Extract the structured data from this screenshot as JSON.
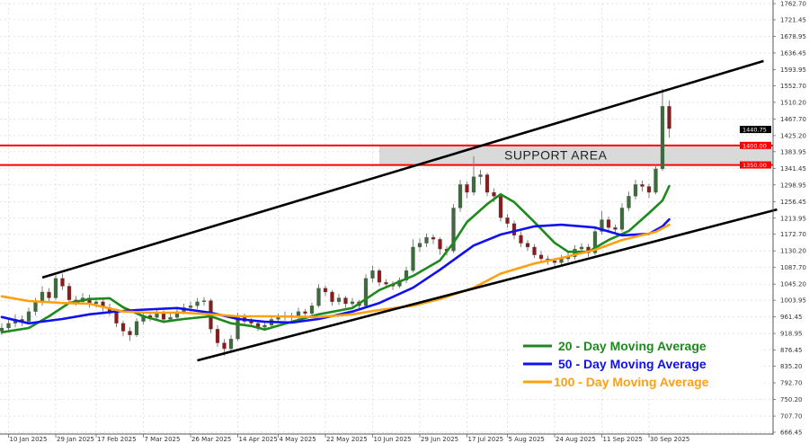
{
  "chart_data": {
    "type": "candlestick",
    "title": "",
    "xlabel": "",
    "ylabel": "",
    "ylim": [
      666.45,
      1762.7
    ],
    "grid": true,
    "y_ticks": [
      "1762.70",
      "1721.45",
      "1678.95",
      "1636.45",
      "1593.95",
      "1552.70",
      "1510.20",
      "1467.70",
      "1425.20",
      "1383.95",
      "1341.45",
      "1298.95",
      "1256.45",
      "1213.95",
      "1172.70",
      "1130.20",
      "1087.70",
      "1045.20",
      "1003.95",
      "961.45",
      "918.95",
      "876.45",
      "835.20",
      "792.70",
      "750.20",
      "707.70",
      "666.45"
    ],
    "x_ticks": [
      {
        "label": "10 Jan 2025",
        "index": 1
      },
      {
        "label": "29 Jan 2025",
        "index": 8
      },
      {
        "label": "17 Feb 2025",
        "index": 14
      },
      {
        "label": "7 Mar 2025",
        "index": 21
      },
      {
        "label": "26 Mar 2025",
        "index": 28
      },
      {
        "label": "14 Apr 2025",
        "index": 35
      },
      {
        "label": "4 May 2025",
        "index": 41
      },
      {
        "label": "22 May 2025",
        "index": 48
      },
      {
        "label": "10 Jun 2025",
        "index": 55
      },
      {
        "label": "29 Jun 2025",
        "index": 62
      },
      {
        "label": "17 Jul 2025",
        "index": 69
      },
      {
        "label": "5 Aug 2025",
        "index": 75
      },
      {
        "label": "24 Aug 2025",
        "index": 82
      },
      {
        "label": "11 Sep 2025",
        "index": 89
      },
      {
        "label": "30 Sep 2025",
        "index": 96
      }
    ],
    "candles_ohlc": [
      [
        925,
        945,
        915,
        933
      ],
      [
        933,
        958,
        925,
        945
      ],
      [
        945,
        968,
        935,
        955
      ],
      [
        955,
        965,
        938,
        950
      ],
      [
        950,
        985,
        945,
        975
      ],
      [
        975,
        1010,
        965,
        1000
      ],
      [
        1000,
        1040,
        990,
        1025
      ],
      [
        1025,
        1035,
        1000,
        1010
      ],
      [
        1010,
        1068,
        1005,
        1060
      ],
      [
        1060,
        1072,
        1030,
        1040
      ],
      [
        1040,
        1048,
        995,
        1005
      ],
      [
        1005,
        1015,
        990,
        1000
      ],
      [
        1000,
        1022,
        995,
        1010
      ],
      [
        1010,
        1018,
        985,
        995
      ],
      [
        995,
        1010,
        985,
        1000
      ],
      [
        1000,
        1008,
        975,
        985
      ],
      [
        985,
        995,
        965,
        975
      ],
      [
        975,
        982,
        935,
        945
      ],
      [
        945,
        952,
        912,
        925
      ],
      [
        925,
        935,
        900,
        915
      ],
      [
        915,
        958,
        910,
        950
      ],
      [
        950,
        975,
        942,
        965
      ],
      [
        965,
        975,
        950,
        960
      ],
      [
        960,
        982,
        952,
        970
      ],
      [
        970,
        978,
        945,
        955
      ],
      [
        955,
        970,
        948,
        960
      ],
      [
        960,
        985,
        955,
        975
      ],
      [
        975,
        995,
        968,
        985
      ],
      [
        985,
        1000,
        975,
        990
      ],
      [
        990,
        1010,
        982,
        1000
      ],
      [
        1000,
        1012,
        990,
        1003
      ],
      [
        1003,
        1008,
        920,
        930
      ],
      [
        930,
        940,
        885,
        895
      ],
      [
        895,
        905,
        862,
        880
      ],
      [
        880,
        915,
        872,
        905
      ],
      [
        905,
        972,
        900,
        960
      ],
      [
        960,
        970,
        940,
        950
      ],
      [
        950,
        958,
        935,
        945
      ],
      [
        945,
        952,
        925,
        935
      ],
      [
        935,
        950,
        928,
        940
      ],
      [
        940,
        962,
        932,
        955
      ],
      [
        955,
        970,
        948,
        960
      ],
      [
        960,
        975,
        952,
        965
      ],
      [
        965,
        972,
        950,
        960
      ],
      [
        960,
        985,
        955,
        975
      ],
      [
        975,
        982,
        962,
        970
      ],
      [
        970,
        998,
        965,
        990
      ],
      [
        990,
        1045,
        985,
        1035
      ],
      [
        1035,
        1042,
        1015,
        1025
      ],
      [
        1025,
        1030,
        990,
        1000
      ],
      [
        1000,
        1020,
        992,
        1010
      ],
      [
        1010,
        1015,
        985,
        995
      ],
      [
        995,
        1010,
        988,
        1000
      ],
      [
        1000,
        1005,
        980,
        990
      ],
      [
        990,
        1070,
        985,
        1060
      ],
      [
        1060,
        1092,
        1050,
        1080
      ],
      [
        1080,
        1085,
        1040,
        1050
      ],
      [
        1050,
        1058,
        1035,
        1045
      ],
      [
        1045,
        1052,
        1030,
        1040
      ],
      [
        1040,
        1062,
        1035,
        1055
      ],
      [
        1055,
        1090,
        1048,
        1080
      ],
      [
        1080,
        1160,
        1075,
        1140
      ],
      [
        1140,
        1162,
        1128,
        1150
      ],
      [
        1150,
        1175,
        1140,
        1165
      ],
      [
        1165,
        1172,
        1148,
        1160
      ],
      [
        1160,
        1165,
        1120,
        1135
      ],
      [
        1135,
        1142,
        1118,
        1130
      ],
      [
        1130,
        1250,
        1125,
        1240
      ],
      [
        1240,
        1312,
        1230,
        1300
      ],
      [
        1300,
        1308,
        1265,
        1280
      ],
      [
        1280,
        1372,
        1272,
        1320
      ],
      [
        1320,
        1338,
        1300,
        1325
      ],
      [
        1325,
        1330,
        1270,
        1280
      ],
      [
        1280,
        1290,
        1255,
        1270
      ],
      [
        1270,
        1278,
        1205,
        1215
      ],
      [
        1215,
        1225,
        1190,
        1200
      ],
      [
        1200,
        1208,
        1160,
        1170
      ],
      [
        1170,
        1180,
        1140,
        1150
      ],
      [
        1150,
        1158,
        1130,
        1140
      ],
      [
        1140,
        1148,
        1112,
        1120
      ],
      [
        1120,
        1130,
        1100,
        1110
      ],
      [
        1110,
        1118,
        1095,
        1105
      ],
      [
        1105,
        1112,
        1088,
        1100
      ],
      [
        1100,
        1120,
        1092,
        1110
      ],
      [
        1110,
        1125,
        1102,
        1115
      ],
      [
        1115,
        1145,
        1108,
        1135
      ],
      [
        1135,
        1150,
        1125,
        1140
      ],
      [
        1140,
        1148,
        1115,
        1125
      ],
      [
        1125,
        1190,
        1120,
        1180
      ],
      [
        1180,
        1232,
        1172,
        1210
      ],
      [
        1210,
        1218,
        1180,
        1190
      ],
      [
        1190,
        1198,
        1172,
        1185
      ],
      [
        1185,
        1252,
        1180,
        1240
      ],
      [
        1240,
        1282,
        1232,
        1270
      ],
      [
        1270,
        1312,
        1262,
        1300
      ],
      [
        1300,
        1310,
        1282,
        1295
      ],
      [
        1295,
        1302,
        1265,
        1280
      ],
      [
        1280,
        1352,
        1275,
        1340
      ],
      [
        1340,
        1545,
        1335,
        1500
      ],
      [
        1500,
        1515,
        1420,
        1443
      ]
    ],
    "series": [
      {
        "name": "20 - Day Moving Average",
        "color": "#1e8a1e",
        "points": [
          [
            0,
            922
          ],
          [
            4,
            933
          ],
          [
            7,
            963
          ],
          [
            10,
            997
          ],
          [
            13,
            1007
          ],
          [
            16,
            1009
          ],
          [
            18,
            986
          ],
          [
            21,
            963
          ],
          [
            24,
            949
          ],
          [
            27,
            956
          ],
          [
            31,
            963
          ],
          [
            34,
            945
          ],
          [
            37,
            938
          ],
          [
            39,
            929
          ],
          [
            43,
            949
          ],
          [
            47,
            968
          ],
          [
            52,
            984
          ],
          [
            56,
            1030
          ],
          [
            61,
            1066
          ],
          [
            65,
            1106
          ],
          [
            67,
            1151
          ],
          [
            69,
            1204
          ],
          [
            72,
            1250
          ],
          [
            74,
            1275
          ],
          [
            76,
            1255
          ],
          [
            79,
            1204
          ],
          [
            82,
            1151
          ],
          [
            84,
            1128
          ],
          [
            87,
            1128
          ],
          [
            90,
            1158
          ],
          [
            93,
            1181
          ],
          [
            96,
            1227
          ],
          [
            98,
            1259
          ],
          [
            99,
            1296
          ]
        ]
      },
      {
        "name": "50 - Day Moving Average",
        "color": "#1010f0",
        "points": [
          [
            0,
            961
          ],
          [
            4,
            945
          ],
          [
            9,
            956
          ],
          [
            13,
            968
          ],
          [
            17,
            975
          ],
          [
            20,
            979
          ],
          [
            26,
            984
          ],
          [
            31,
            972
          ],
          [
            35,
            956
          ],
          [
            39,
            949
          ],
          [
            43,
            947
          ],
          [
            47,
            956
          ],
          [
            52,
            975
          ],
          [
            56,
            997
          ],
          [
            61,
            1036
          ],
          [
            65,
            1082
          ],
          [
            70,
            1144
          ],
          [
            74,
            1172
          ],
          [
            79,
            1193
          ],
          [
            83,
            1197
          ],
          [
            88,
            1190
          ],
          [
            92,
            1170
          ],
          [
            96,
            1174
          ],
          [
            98,
            1193
          ],
          [
            99,
            1211
          ]
        ]
      },
      {
        "name": "100 - Day Moving Average",
        "color": "#ffa010",
        "points": [
          [
            0,
            1014
          ],
          [
            4,
            1002
          ],
          [
            9,
            997
          ],
          [
            13,
            995
          ],
          [
            18,
            975
          ],
          [
            22,
            972
          ],
          [
            27,
            972
          ],
          [
            31,
            968
          ],
          [
            35,
            963
          ],
          [
            40,
            963
          ],
          [
            47,
            961
          ],
          [
            52,
            968
          ],
          [
            56,
            979
          ],
          [
            61,
            990
          ],
          [
            65,
            1007
          ],
          [
            70,
            1036
          ],
          [
            74,
            1072
          ],
          [
            79,
            1098
          ],
          [
            83,
            1112
          ],
          [
            88,
            1133
          ],
          [
            92,
            1158
          ],
          [
            97,
            1179
          ],
          [
            99,
            1197
          ]
        ]
      }
    ],
    "trendlines": [
      {
        "from": [
          6,
          1062
        ],
        "to": [
          113,
          1616
        ],
        "color": "#000000"
      },
      {
        "from": [
          29,
          850
        ],
        "to": [
          115,
          1236
        ],
        "color": "#000000"
      }
    ],
    "support_area": {
      "label": "SUPPORT AREA",
      "upper": 1400,
      "lower": 1350,
      "line_color": "#ff0000",
      "fill": "#d9d9d9",
      "start_index": 56
    },
    "price_labels": [
      {
        "text": "1440.75",
        "value": 1440.75,
        "color": "#000000"
      },
      {
        "text": "1400.00",
        "value": 1400,
        "color": "#ff0000"
      },
      {
        "text": "1350.00",
        "value": 1350,
        "color": "#ff0000"
      }
    ],
    "legend_position": "bottom-right",
    "colors": {
      "bull": "#3d6b3d",
      "bear": "#8b1a1a",
      "wick": "#808080",
      "grid": "#d8d8d8"
    }
  }
}
